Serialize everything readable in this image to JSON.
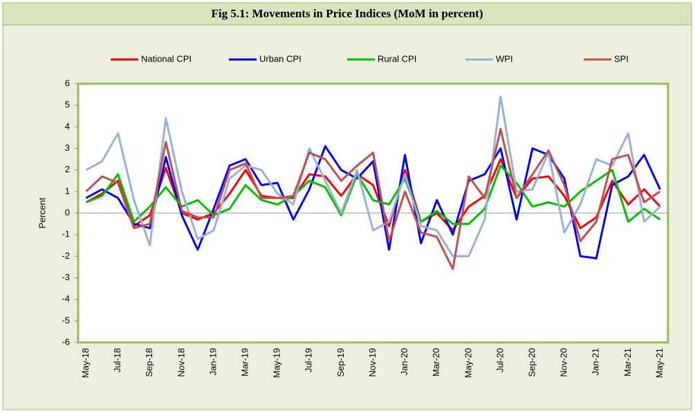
{
  "chart_data": {
    "type": "line",
    "title": "Fig 5.1: Movements in Price Indices (MoM in percent)",
    "y_label": "Percent",
    "categories": [
      "May-18",
      null,
      "Jul-18",
      null,
      "Sep-18",
      null,
      "Nov-18",
      null,
      "Jan-19",
      null,
      "Mar-19",
      null,
      "May-19",
      null,
      "Jul-19",
      null,
      "Sep-19",
      null,
      "Nov-19",
      null,
      "Jan-20",
      null,
      "Mar-20",
      null,
      "May-20",
      null,
      "Jul-20",
      null,
      "Sep-20",
      null,
      "Nov-20",
      null,
      "Jan-21",
      null,
      "Mar-21",
      null,
      "May-21"
    ],
    "series": [
      {
        "name": "National CPI",
        "color": "#ff0000",
        "values": [
          0.5,
          0.9,
          1.5,
          -0.6,
          -0.1,
          2.1,
          0.0,
          -0.3,
          0.0,
          0.9,
          2.0,
          0.8,
          0.7,
          0.7,
          1.8,
          1.7,
          0.8,
          1.8,
          1.3,
          -0.6,
          2.0,
          -0.4,
          0.0,
          -0.8,
          0.3,
          0.8,
          2.5,
          0.7,
          1.6,
          1.7,
          0.8,
          -0.7,
          -0.2,
          1.5,
          0.4,
          1.1,
          0.3
        ]
      },
      {
        "name": "Urban CPI",
        "color": "#0000ff",
        "values": [
          0.7,
          1.1,
          0.7,
          -0.5,
          -0.7,
          2.6,
          -0.1,
          -1.7,
          0.2,
          2.2,
          2.5,
          1.3,
          1.4,
          -0.3,
          1.1,
          3.1,
          2.0,
          1.6,
          2.4,
          -1.7,
          2.7,
          -1.4,
          0.6,
          -1.0,
          1.5,
          1.8,
          3.0,
          -0.3,
          3.0,
          2.7,
          1.6,
          -2.0,
          -2.1,
          1.3,
          1.7,
          2.7,
          1.1
        ]
      },
      {
        "name": "Rural CPI",
        "color": "#00c000",
        "values": [
          0.5,
          0.8,
          1.8,
          -0.4,
          0.3,
          1.2,
          0.3,
          0.6,
          -0.1,
          0.2,
          1.3,
          0.6,
          0.4,
          0.8,
          1.5,
          1.2,
          -0.1,
          1.8,
          0.6,
          0.4,
          1.6,
          -0.4,
          0.1,
          -0.5,
          -0.5,
          0.2,
          2.2,
          1.4,
          0.3,
          0.5,
          0.3,
          1.0,
          1.5,
          2.0,
          -0.4,
          0.2,
          -0.3
        ]
      },
      {
        "name": "WPI",
        "color": "#95b3d7",
        "values": [
          2.0,
          2.4,
          3.7,
          0.6,
          -1.5,
          4.4,
          1.0,
          -1.2,
          -0.8,
          1.6,
          2.2,
          2.0,
          0.9,
          0.4,
          3.0,
          1.5,
          0.0,
          2.0,
          -0.8,
          -0.4,
          1.8,
          -0.6,
          -0.8,
          -2.0,
          -2.0,
          -0.3,
          5.4,
          1.0,
          1.1,
          2.8,
          -0.9,
          0.4,
          2.5,
          2.2,
          3.7,
          -0.4,
          0.3
        ]
      },
      {
        "name": "SPI",
        "color": "#c0504d",
        "values": [
          1.0,
          1.7,
          1.4,
          -0.7,
          -0.5,
          3.3,
          0.1,
          -0.2,
          -0.2,
          2.0,
          2.3,
          0.7,
          0.7,
          0.8,
          2.8,
          2.5,
          1.5,
          2.2,
          2.8,
          -1.3,
          1.0,
          -0.9,
          -1.1,
          -2.6,
          1.7,
          0.7,
          3.9,
          0.7,
          1.8,
          2.9,
          1.3,
          -1.3,
          -0.4,
          2.5,
          2.7,
          0.5,
          1.0
        ]
      }
    ],
    "ylim": [
      -6,
      6
    ],
    "yticks": [
      -6,
      -5,
      -4,
      -3,
      -2,
      -1,
      0,
      1,
      2,
      3,
      4,
      5,
      6
    ],
    "grid": false,
    "legend": "top"
  }
}
